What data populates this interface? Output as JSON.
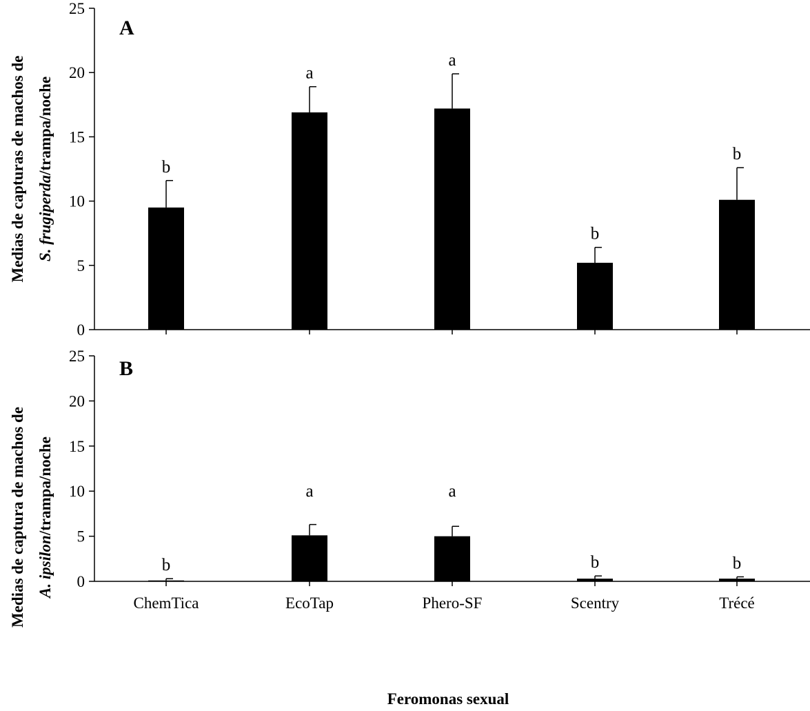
{
  "chart_data": [
    {
      "type": "bar",
      "panel_label": "A",
      "categories": [
        "ChemTica",
        "EcoTap",
        "Phero-SF",
        "Scentry",
        "Trécé"
      ],
      "values": [
        9.5,
        16.9,
        17.2,
        5.2,
        10.1
      ],
      "errors": [
        2.1,
        2.0,
        2.7,
        1.2,
        2.5
      ],
      "significance": [
        "b",
        "a",
        "a",
        "b",
        "b"
      ],
      "ylabel_parts": [
        "Medias de capturas de machos de",
        "S. frugiperda",
        "/trampa/noche"
      ],
      "ylim": [
        0,
        25
      ],
      "yticks": [
        0,
        5,
        10,
        15,
        20,
        25
      ],
      "bar_color": "#000000"
    },
    {
      "type": "bar",
      "panel_label": "B",
      "categories": [
        "ChemTica",
        "EcoTap",
        "Phero-SF",
        "Scentry",
        "Trécé"
      ],
      "values": [
        0.1,
        5.1,
        5.0,
        0.3,
        0.3
      ],
      "errors": [
        0.2,
        1.2,
        1.1,
        0.3,
        0.2
      ],
      "significance": [
        "b",
        "a",
        "a",
        "b",
        "b"
      ],
      "ylabel_parts": [
        "Medias de captura de machos de",
        "A. ipsilon",
        "/trampa/noche"
      ],
      "ylim": [
        0,
        25
      ],
      "yticks": [
        0,
        5,
        10,
        15,
        20,
        25
      ],
      "xlabel": "Feromonas sexual",
      "bar_color": "#000000"
    }
  ]
}
